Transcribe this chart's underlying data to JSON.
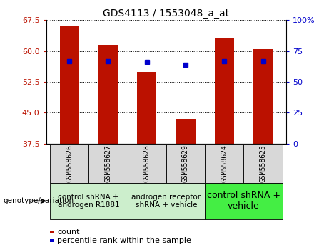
{
  "title": "GDS4113 / 1553048_a_at",
  "samples": [
    "GSM558626",
    "GSM558627",
    "GSM558628",
    "GSM558629",
    "GSM558624",
    "GSM558625"
  ],
  "counts": [
    66.0,
    61.5,
    55.0,
    43.5,
    63.0,
    60.5
  ],
  "percentiles": [
    67,
    67,
    66,
    64,
    67,
    67
  ],
  "ylim_left": [
    37.5,
    67.5
  ],
  "ylim_right": [
    0,
    100
  ],
  "yticks_left": [
    37.5,
    45.0,
    52.5,
    60.0,
    67.5
  ],
  "yticks_right": [
    0,
    25,
    50,
    75,
    100
  ],
  "bar_color": "#bb1100",
  "dot_color": "#0000cc",
  "bar_width": 0.5,
  "xlabel_area": "genotype/variation",
  "legend_count_label": "count",
  "legend_pct_label": "percentile rank within the sample",
  "plot_bg": "#ffffff",
  "sample_box_color": "#d8d8d8",
  "group_labels": [
    "control shRNA +\nandrogen R1881",
    "androgen receptor\nshRNA + vehicle",
    "control shRNA +\nvehicle"
  ],
  "group_sample_ranges": [
    [
      0,
      1
    ],
    [
      2,
      3
    ],
    [
      4,
      5
    ]
  ],
  "group_bg_colors": [
    "#cceecc",
    "#cceecc",
    "#44ee44"
  ],
  "group_text_sizes": [
    7.5,
    7.5,
    9
  ]
}
